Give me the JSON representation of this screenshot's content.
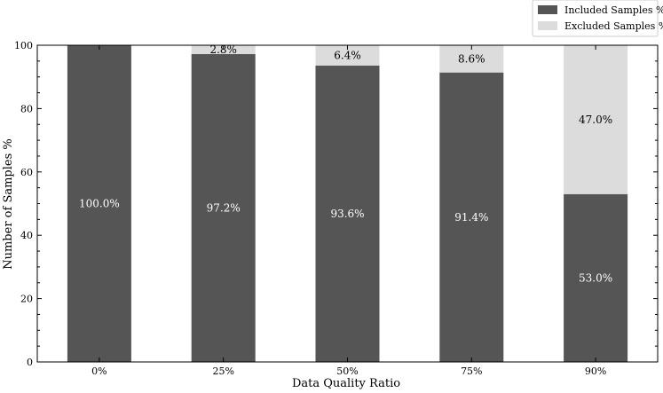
{
  "chart_data": {
    "type": "bar",
    "stacked": true,
    "categories": [
      "0%",
      "25%",
      "50%",
      "75%",
      "90%"
    ],
    "series": [
      {
        "name": "Included Samples %",
        "values": [
          100.0,
          97.2,
          93.6,
          91.4,
          53.0
        ],
        "labels": [
          "100.0%",
          "97.2%",
          "93.6%",
          "91.4%",
          "53.0%"
        ],
        "color": "#555555",
        "label_color": "#ffffff"
      },
      {
        "name": "Excluded Samples %",
        "values": [
          0.0,
          2.8,
          6.4,
          8.6,
          47.0
        ],
        "labels": [
          "",
          "2.8%",
          "6.4%",
          "8.6%",
          "47.0%"
        ],
        "color": "#dcdcdc",
        "label_color": "#000000"
      }
    ],
    "xlabel": "Data Quality Ratio",
    "ylabel": "Number of Samples %",
    "ylim": [
      0,
      100
    ],
    "yticks": [
      0,
      20,
      40,
      60,
      80,
      100
    ],
    "grid": false,
    "legend_position": "upper-right, above plot"
  }
}
